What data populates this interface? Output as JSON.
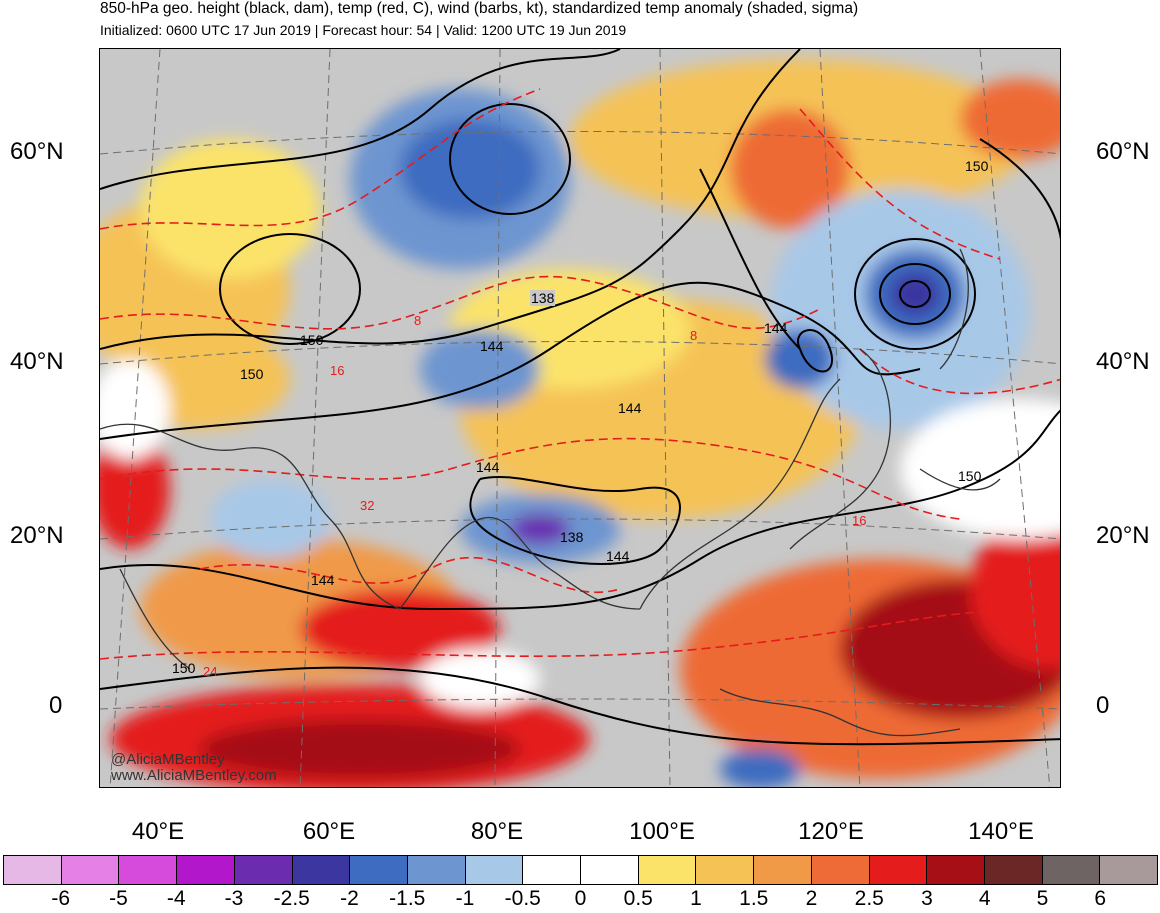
{
  "header": {
    "title": "850-hPa geo. height (black, dam), temp (red, C), wind (barbs, kt), standardized temp anomaly (shaded, sigma)",
    "subtitle": "Initialized: 0600 UTC 17 Jun 2019 | Forecast hour: 54 | Valid: 1200 UTC 19 Jun 2019"
  },
  "map": {
    "lat_labels_left": [
      "60°N",
      "40°N",
      "20°N",
      "0"
    ],
    "lat_labels_right": [
      "60°N",
      "40°N",
      "20°N",
      "0"
    ],
    "lon_labels": [
      "40°E",
      "60°E",
      "80°E",
      "100°E",
      "120°E",
      "140°E"
    ],
    "height_contour_labels": [
      "138",
      "144",
      "150",
      "150",
      "144",
      "144",
      "144",
      "138",
      "144",
      "150",
      "144",
      "150",
      "150"
    ],
    "temp_contour_labels": [
      "8",
      "16",
      "32",
      "24",
      "16",
      "8"
    ],
    "watermark_handle": "@AliciaMBentley",
    "watermark_url": "www.AliciaMBentley.com"
  },
  "colorbar": {
    "ticks": [
      "-6",
      "-5",
      "-4",
      "-3",
      "-2.5",
      "-2",
      "-1.5",
      "-1",
      "-0.5",
      "0",
      "0.5",
      "1",
      "1.5",
      "2",
      "2.5",
      "3",
      "4",
      "5",
      "6"
    ],
    "colors": [
      "#e6b8e6",
      "#e580e6",
      "#d64bdc",
      "#b317cc",
      "#6b2cb0",
      "#3b36a0",
      "#3d6cc0",
      "#6d95d0",
      "#a8c8e8",
      "#ffffff",
      "#ffffff",
      "#fbe36a",
      "#f5c256",
      "#f09a48",
      "#ee6a36",
      "#e41c1c",
      "#a50f15",
      "#6b2626",
      "#6e6464",
      "#a89a9a"
    ]
  }
}
